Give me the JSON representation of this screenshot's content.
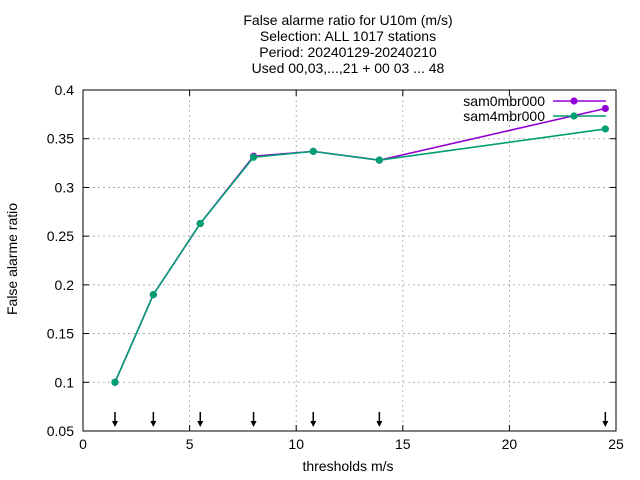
{
  "chart_data": {
    "type": "line",
    "title_lines": [
      "False alarme ratio  for U10m (m/s)",
      "Selection: ALL   1017 stations",
      "Period: 20240129-20240210",
      "Used 00,03,...,21 + 00 03 ... 48"
    ],
    "xlabel": "thresholds m/s",
    "ylabel": "False alarme ratio",
    "xlim": [
      0,
      25
    ],
    "ylim": [
      0.05,
      0.4
    ],
    "xticks": [
      0,
      5,
      10,
      15,
      20,
      25
    ],
    "xtick_labels": [
      "0",
      "5",
      "10",
      "15",
      "20",
      "25"
    ],
    "yticks": [
      0.05,
      0.1,
      0.15,
      0.2,
      0.25,
      0.3,
      0.35,
      0.4
    ],
    "ytick_labels": [
      "0.05",
      "0.1",
      "0.15",
      "0.2",
      "0.25",
      "0.3",
      "0.35",
      "0.4"
    ],
    "grid": true,
    "legend_position": "top-right",
    "x": [
      1.5,
      3.3,
      5.5,
      8.0,
      10.8,
      13.9,
      24.5
    ],
    "series": [
      {
        "name": "sam0mbr000",
        "color": "#9400d3",
        "values": [
          0.1,
          0.19,
          0.263,
          0.332,
          0.337,
          0.328,
          0.381
        ]
      },
      {
        "name": "sam4mbr000",
        "color": "#009e73",
        "values": [
          0.1,
          0.19,
          0.263,
          0.331,
          0.337,
          0.328,
          0.36
        ]
      }
    ],
    "threshold_markers": [
      1.5,
      3.3,
      5.5,
      8.0,
      10.8,
      13.9,
      24.5
    ]
  }
}
